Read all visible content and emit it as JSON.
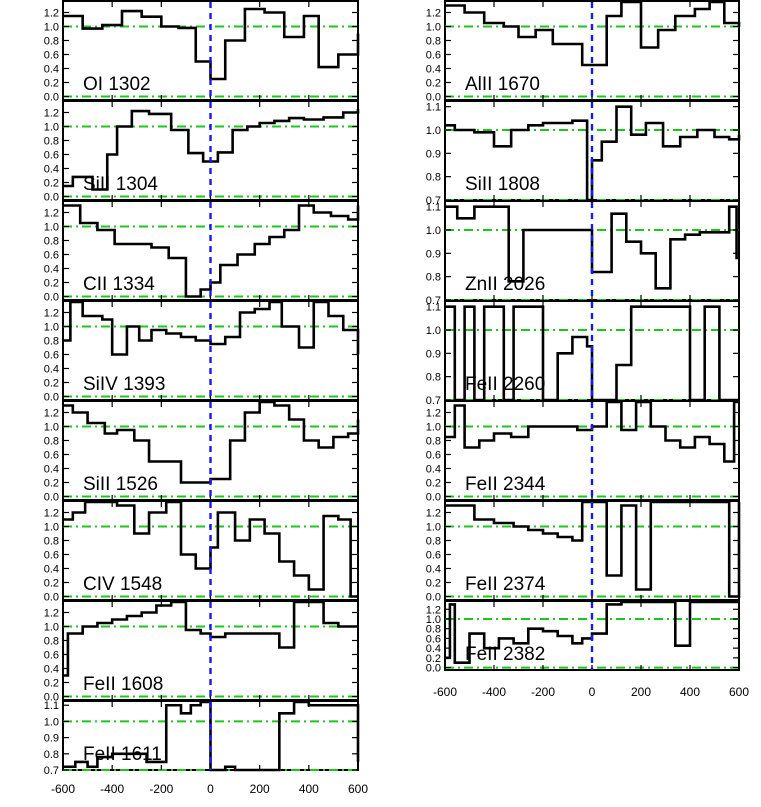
{
  "chart_data": {
    "type": "line",
    "x_axis": {
      "xlim": [
        -600,
        600
      ],
      "tick_labels": [
        "-600",
        "-400",
        "-200",
        "0",
        "200",
        "400",
        "600"
      ],
      "tick_values": [
        -600,
        -400,
        -200,
        0,
        200,
        400,
        600
      ]
    },
    "reference_line_x": 0,
    "panels": [
      {
        "column": "left",
        "label": "OI 1302",
        "ylim": [
          -0.05,
          1.35
        ],
        "yticks": [
          "0.0",
          "0.2",
          "0.4",
          "0.6",
          "0.8",
          "1.0",
          "1.2"
        ],
        "ref_lines": [
          0.0,
          1.0
        ],
        "x": [
          -600,
          -520,
          -440,
          -360,
          -280,
          -200,
          -130,
          -60,
          0,
          60,
          140,
          220,
          300,
          380,
          440,
          520,
          600
        ],
        "y": [
          1.15,
          0.97,
          1.02,
          1.22,
          1.14,
          1.0,
          0.98,
          0.5,
          0.25,
          0.8,
          1.25,
          1.2,
          0.85,
          1.15,
          0.42,
          0.6,
          0.9
        ]
      },
      {
        "column": "left",
        "label": "SiII 1304",
        "ylim": [
          -0.05,
          1.35
        ],
        "yticks": [
          "0.0",
          "0.2",
          "0.4",
          "0.6",
          "0.8",
          "1.0",
          "1.2"
        ],
        "ref_lines": [
          0.0,
          1.0
        ],
        "x": [
          -600,
          -560,
          -480,
          -420,
          -380,
          -320,
          -250,
          -160,
          -90,
          -30,
          30,
          90,
          150,
          200,
          260,
          320,
          380,
          460,
          540,
          600
        ],
        "y": [
          0.15,
          0.28,
          0.1,
          0.6,
          1.0,
          1.22,
          1.18,
          0.95,
          0.62,
          0.5,
          0.63,
          0.95,
          1.0,
          1.05,
          1.08,
          1.12,
          1.1,
          1.13,
          1.2,
          1.25
        ]
      },
      {
        "column": "left",
        "label": "CII 1334",
        "ylim": [
          -0.05,
          1.35
        ],
        "yticks": [
          "0.0",
          "0.2",
          "0.4",
          "0.6",
          "0.8",
          "1.0",
          "1.2"
        ],
        "ref_lines": [
          0.0,
          1.0
        ],
        "x": [
          -600,
          -530,
          -460,
          -390,
          -320,
          -240,
          -170,
          -100,
          -40,
          0,
          40,
          110,
          180,
          240,
          300,
          360,
          420,
          490,
          560,
          600
        ],
        "y": [
          1.3,
          1.05,
          0.95,
          0.75,
          0.75,
          0.7,
          0.55,
          0.0,
          0.1,
          0.2,
          0.45,
          0.6,
          0.75,
          0.85,
          0.95,
          1.3,
          1.2,
          1.15,
          1.1,
          1.3
        ]
      },
      {
        "column": "left",
        "label": "SiIV 1393",
        "ylim": [
          -0.05,
          1.35
        ],
        "yticks": [
          "0.0",
          "0.2",
          "0.4",
          "0.6",
          "0.8",
          "1.0",
          "1.2"
        ],
        "ref_lines": [
          0.0,
          1.0
        ],
        "x": [
          -600,
          -570,
          -520,
          -440,
          -400,
          -340,
          -290,
          -240,
          -180,
          -120,
          -60,
          0,
          60,
          120,
          180,
          240,
          290,
          360,
          420,
          480,
          540,
          600
        ],
        "y": [
          0.8,
          1.4,
          1.15,
          1.1,
          0.6,
          1.0,
          0.8,
          0.95,
          0.9,
          0.85,
          0.8,
          0.75,
          0.85,
          1.2,
          1.25,
          1.4,
          1.0,
          0.7,
          1.4,
          1.15,
          0.95,
          0.6
        ]
      },
      {
        "column": "left",
        "label": "SiII 1526",
        "ylim": [
          -0.05,
          1.35
        ],
        "yticks": [
          "0.0",
          "0.2",
          "0.4",
          "0.6",
          "0.8",
          "1.0",
          "1.2"
        ],
        "ref_lines": [
          0.0,
          1.0
        ],
        "x": [
          -600,
          -560,
          -500,
          -430,
          -380,
          -310,
          -250,
          -190,
          -120,
          -60,
          0,
          80,
          140,
          200,
          260,
          320,
          380,
          440,
          500,
          560,
          600
        ],
        "y": [
          1.3,
          1.2,
          1.05,
          0.9,
          0.95,
          0.8,
          0.5,
          0.5,
          0.2,
          0.2,
          0.25,
          0.8,
          1.2,
          1.35,
          1.3,
          1.1,
          0.8,
          0.7,
          0.85,
          0.9,
          1.1
        ]
      },
      {
        "column": "left",
        "label": "CIV 1548",
        "ylim": [
          -0.05,
          1.35
        ],
        "yticks": [
          "0.0",
          "0.2",
          "0.4",
          "0.6",
          "0.8",
          "1.0",
          "1.2"
        ],
        "ref_lines": [
          0.0,
          1.0
        ],
        "x": [
          -600,
          -560,
          -510,
          -460,
          -380,
          -310,
          -250,
          -180,
          -120,
          -60,
          0,
          30,
          100,
          160,
          220,
          280,
          340,
          400,
          460,
          520,
          570,
          600
        ],
        "y": [
          1.1,
          1.2,
          1.4,
          1.4,
          1.3,
          0.9,
          1.2,
          1.4,
          0.6,
          0.4,
          0.7,
          1.2,
          0.8,
          1.1,
          0.9,
          0.5,
          0.3,
          0.1,
          1.15,
          1.1,
          0.0,
          0.0
        ]
      },
      {
        "column": "left",
        "label": "FeII 1608",
        "ylim": [
          -0.05,
          1.35
        ],
        "yticks": [
          "0.0",
          "0.2",
          "0.4",
          "0.6",
          "0.8",
          "1.0",
          "1.2"
        ],
        "ref_lines": [
          0.0,
          1.0
        ],
        "x": [
          -600,
          -580,
          -520,
          -460,
          -400,
          -340,
          -280,
          -220,
          -160,
          -100,
          -40,
          0,
          60,
          140,
          220,
          280,
          340,
          400,
          460,
          520,
          600
        ],
        "y": [
          0.3,
          0.9,
          1.0,
          1.05,
          1.1,
          1.15,
          1.2,
          1.3,
          1.35,
          0.95,
          0.9,
          0.85,
          0.9,
          0.9,
          0.9,
          0.7,
          1.35,
          1.35,
          1.05,
          1.0,
          1.0
        ]
      },
      {
        "column": "left",
        "label": "FeII 1611",
        "ylim": [
          0.7,
          1.12
        ],
        "yticks": [
          "0.7",
          "0.8",
          "0.9",
          "1.0",
          "1.1"
        ],
        "ref_lines": [
          0.7,
          1.0
        ],
        "x": [
          -600,
          -550,
          -500,
          -460,
          -400,
          -340,
          -260,
          -180,
          -120,
          -80,
          -40,
          0,
          60,
          100,
          140,
          220,
          280,
          340,
          400,
          460,
          520,
          560,
          600
        ],
        "y": [
          0.72,
          0.75,
          0.72,
          0.78,
          0.8,
          0.8,
          0.75,
          1.1,
          1.05,
          1.1,
          1.15,
          0.7,
          0.72,
          0.7,
          0.7,
          0.7,
          1.05,
          1.15,
          1.1,
          1.1,
          1.1,
          1.1,
          0.75
        ]
      },
      {
        "column": "right",
        "label": "AlII 1670",
        "ylim": [
          -0.05,
          1.35
        ],
        "yticks": [
          "0.0",
          "0.2",
          "0.4",
          "0.6",
          "0.8",
          "1.0",
          "1.2"
        ],
        "ref_lines": [
          0.0,
          1.0
        ],
        "x": [
          -600,
          -520,
          -440,
          -360,
          -300,
          -230,
          -160,
          -100,
          -40,
          0,
          60,
          120,
          200,
          270,
          340,
          420,
          480,
          540,
          600
        ],
        "y": [
          1.3,
          1.2,
          1.05,
          1.0,
          0.85,
          0.95,
          0.75,
          0.75,
          0.45,
          0.45,
          1.15,
          1.35,
          0.7,
          0.95,
          1.15,
          1.25,
          1.35,
          1.05,
          1.0
        ]
      },
      {
        "column": "right",
        "label": "SiII 1808",
        "ylim": [
          0.7,
          1.12
        ],
        "yticks": [
          "0.7",
          "0.8",
          "0.9",
          "1.0",
          "1.1"
        ],
        "ref_lines": [
          0.7,
          1.0
        ],
        "x": [
          -600,
          -560,
          -480,
          -400,
          -330,
          -260,
          -200,
          -140,
          -80,
          -20,
          0,
          40,
          100,
          160,
          220,
          290,
          360,
          430,
          500,
          560,
          600
        ],
        "y": [
          1.02,
          1.0,
          0.99,
          0.93,
          1.0,
          1.02,
          1.03,
          1.03,
          1.04,
          0.7,
          0.87,
          0.95,
          1.1,
          0.98,
          1.03,
          0.93,
          0.97,
          1.0,
          0.97,
          0.96,
          0.98
        ]
      },
      {
        "column": "right",
        "label": "ZnII 2026",
        "ylim": [
          0.7,
          1.12
        ],
        "yticks": [
          "0.7",
          "0.8",
          "0.9",
          "1.0",
          "1.1"
        ],
        "ref_lines": [
          0.7,
          1.0
        ],
        "x": [
          -600,
          -550,
          -480,
          -400,
          -340,
          -280,
          -220,
          -160,
          -100,
          -40,
          0,
          80,
          140,
          200,
          260,
          320,
          380,
          440,
          500,
          560,
          590,
          600
        ],
        "y": [
          1.1,
          1.05,
          1.1,
          1.1,
          0.78,
          1.0,
          1.0,
          1.0,
          1.0,
          1.0,
          0.82,
          1.07,
          0.95,
          0.9,
          0.75,
          0.96,
          0.98,
          0.99,
          0.99,
          1.1,
          0.88,
          0.88
        ]
      },
      {
        "column": "right",
        "label": "FeII 2260",
        "ylim": [
          0.7,
          1.12
        ],
        "yticks": [
          "0.7",
          "0.8",
          "0.9",
          "1.0",
          "1.1"
        ],
        "ref_lines": [
          0.7,
          1.0
        ],
        "x": [
          -600,
          -560,
          -520,
          -480,
          -440,
          -400,
          -360,
          -320,
          -260,
          -200,
          -140,
          -80,
          -20,
          0,
          40,
          100,
          160,
          220,
          280,
          340,
          400,
          460,
          520,
          600
        ],
        "y": [
          1.1,
          0.7,
          1.1,
          0.7,
          1.1,
          1.1,
          0.7,
          1.1,
          1.1,
          0.7,
          0.9,
          0.97,
          0.93,
          0.7,
          0.7,
          0.85,
          1.1,
          1.1,
          1.1,
          1.1,
          0.7,
          1.1,
          0.7,
          0.7
        ]
      },
      {
        "column": "right",
        "label": "FeII 2344",
        "ylim": [
          -0.05,
          1.35
        ],
        "yticks": [
          "0.0",
          "0.2",
          "0.4",
          "0.6",
          "0.8",
          "1.0",
          "1.2"
        ],
        "ref_lines": [
          0.0,
          1.0
        ],
        "x": [
          -600,
          -560,
          -520,
          -460,
          -400,
          -330,
          -260,
          -180,
          -120,
          -60,
          0,
          60,
          120,
          180,
          240,
          300,
          360,
          420,
          480,
          540,
          580,
          600
        ],
        "y": [
          0.85,
          1.3,
          0.7,
          0.8,
          0.9,
          0.85,
          1.0,
          1.0,
          1.0,
          0.95,
          1.0,
          1.35,
          0.95,
          1.35,
          1.0,
          0.8,
          0.7,
          0.85,
          0.75,
          0.5,
          1.35,
          1.35
        ]
      },
      {
        "column": "right",
        "label": "FeII 2374",
        "ylim": [
          -0.05,
          1.35
        ],
        "yticks": [
          "0.0",
          "0.2",
          "0.4",
          "0.6",
          "0.8",
          "1.0",
          "1.2"
        ],
        "ref_lines": [
          0.0,
          1.0
        ],
        "x": [
          -600,
          -560,
          -480,
          -400,
          -320,
          -260,
          -200,
          -140,
          -80,
          -40,
          0,
          60,
          120,
          180,
          240,
          300,
          360,
          420,
          500,
          560,
          600
        ],
        "y": [
          1.3,
          1.3,
          1.1,
          1.05,
          1.0,
          0.95,
          0.9,
          0.85,
          0.8,
          1.35,
          1.35,
          0.3,
          1.3,
          0.1,
          1.35,
          1.35,
          1.35,
          1.35,
          1.35,
          0.0,
          1.35
        ]
      },
      {
        "column": "right",
        "label": "FeII 2382",
        "ylim": [
          -0.05,
          1.35
        ],
        "yticks": [
          "0.0",
          "0.2",
          "0.4",
          "0.6",
          "0.8",
          "1.0",
          "1.2"
        ],
        "ref_lines": [
          0.0,
          1.0
        ],
        "x": [
          -600,
          -580,
          -560,
          -500,
          -440,
          -380,
          -320,
          -260,
          -200,
          -140,
          -80,
          -40,
          0,
          60,
          120,
          180,
          260,
          340,
          400,
          460,
          520,
          580,
          600
        ],
        "y": [
          0.2,
          1.3,
          0.1,
          0.7,
          0.4,
          0.6,
          0.5,
          0.8,
          0.75,
          0.65,
          0.5,
          0.6,
          0.7,
          1.3,
          1.35,
          1.35,
          1.35,
          0.45,
          1.35,
          1.35,
          1.35,
          1.35,
          1.35
        ]
      }
    ]
  }
}
